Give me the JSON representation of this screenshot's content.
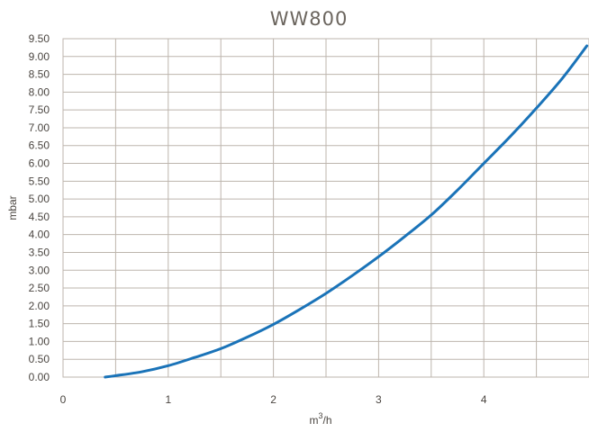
{
  "chart_data": {
    "type": "line",
    "title": "WW800",
    "xlabel": "m³/h",
    "xlabel_base": "m",
    "xlabel_sup": "3",
    "xlabel_tail": "/h",
    "ylabel": "mbar",
    "xlim": [
      0,
      5
    ],
    "ylim": [
      0,
      9.5
    ],
    "x_ticks": [
      0,
      1,
      2,
      3,
      4
    ],
    "x_tick_labels": [
      "0",
      "1",
      "2",
      "3",
      "4"
    ],
    "x_gridlines": [
      0,
      0.5,
      1,
      1.5,
      2,
      2.5,
      3,
      3.5,
      4,
      4.5,
      5
    ],
    "y_ticks": [
      0,
      0.5,
      1,
      1.5,
      2,
      2.5,
      3,
      3.5,
      4,
      4.5,
      5,
      5.5,
      6,
      6.5,
      7,
      7.5,
      8,
      8.5,
      9,
      9.5
    ],
    "y_tick_labels": [
      "0.00",
      "0.50",
      "1.00",
      "1.50",
      "2.00",
      "2.50",
      "3.00",
      "3.50",
      "4.00",
      "4.50",
      "5.00",
      "5.50",
      "6.00",
      "6.50",
      "7.00",
      "7.50",
      "8.00",
      "8.50",
      "9.00",
      "9.50"
    ],
    "grid": true,
    "legend": "none",
    "series": [
      {
        "color": "#1a73b8",
        "x": [
          0.4,
          0.5,
          0.75,
          1.0,
          1.25,
          1.5,
          1.75,
          2.0,
          2.25,
          2.5,
          2.75,
          3.0,
          3.25,
          3.5,
          3.75,
          4.0,
          4.25,
          4.5,
          4.75,
          4.98
        ],
        "y": [
          0.0,
          0.04,
          0.15,
          0.32,
          0.55,
          0.8,
          1.12,
          1.48,
          1.9,
          2.35,
          2.85,
          3.38,
          3.95,
          4.55,
          5.25,
          6.0,
          6.75,
          7.55,
          8.4,
          9.3
        ]
      }
    ]
  }
}
